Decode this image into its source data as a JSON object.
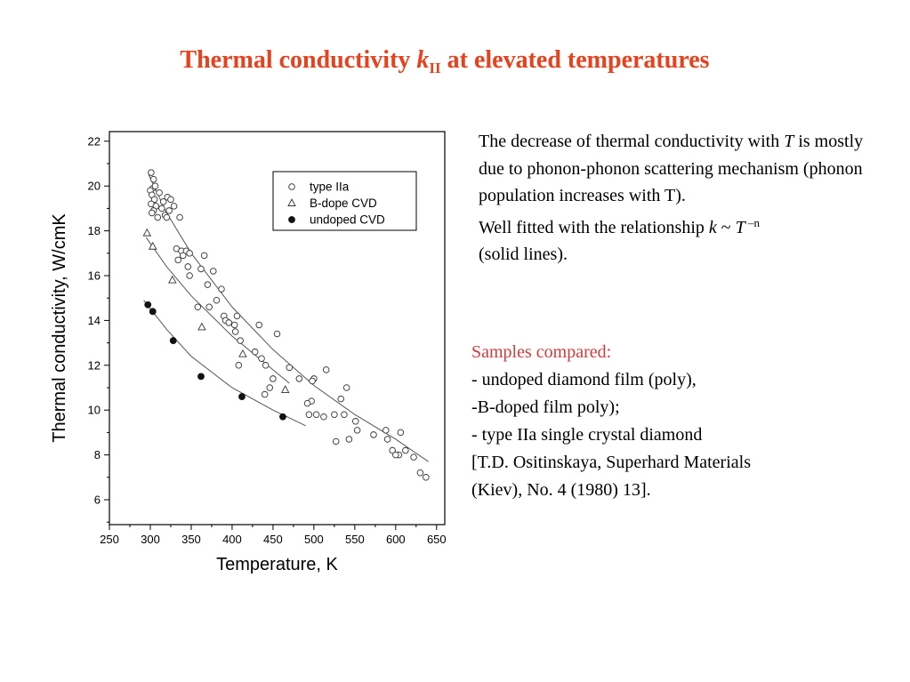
{
  "title": {
    "main": "Thermal conductivity ",
    "symbol": "k",
    "subscript": "II",
    "rest": " at elevated temperatures"
  },
  "description": {
    "line1_pre": "The decrease of thermal conductivity with ",
    "line1_T": "T",
    "line1_post": " is mostly due to phonon-phonon scattering mechanism (phonon population increases with T).",
    "line2_pre": "Well fitted with the relationship ",
    "line2_k": "k",
    "line2_sim": " ~ ",
    "line2_T": "T",
    "line2_exp": " –n",
    "line2_post": " (solid lines)."
  },
  "samples": {
    "heading": "Samples compared:",
    "items": [
      "- undoped diamond film (poly),",
      "-B-doped film poly);",
      "- type IIa single crystal diamond",
      " [T.D. Ositinskaya, Superhard Materials",
      "(Kiev), No. 4 (1980) 13]."
    ]
  },
  "chart_data": {
    "type": "scatter",
    "title": "",
    "xlabel": "Temperature, K",
    "ylabel": "Thermal conductivity, W/cmK",
    "xlim": [
      250,
      660
    ],
    "ylim": [
      4.6,
      22
    ],
    "xticks": [
      250,
      300,
      350,
      400,
      450,
      500,
      550,
      600,
      650
    ],
    "yticks": [
      6,
      8,
      10,
      12,
      14,
      16,
      18,
      20,
      22
    ],
    "grid": false,
    "legend_position": "top-right",
    "series": [
      {
        "name": "type IIa",
        "marker": "open-circle",
        "points": [
          [
            301,
            20.6
          ],
          [
            304,
            20.3
          ],
          [
            303,
            19.9
          ],
          [
            306,
            20.0
          ],
          [
            300,
            19.8
          ],
          [
            302,
            19.6
          ],
          [
            305,
            19.4
          ],
          [
            301,
            19.2
          ],
          [
            307,
            19.1
          ],
          [
            304,
            18.9
          ],
          [
            302,
            18.8
          ],
          [
            309,
            18.6
          ],
          [
            311,
            19.7
          ],
          [
            316,
            19.3
          ],
          [
            314,
            19.0
          ],
          [
            318,
            18.7
          ],
          [
            321,
            19.5
          ],
          [
            325,
            19.4
          ],
          [
            323,
            18.9
          ],
          [
            320,
            18.6
          ],
          [
            329,
            19.1
          ],
          [
            336,
            18.6
          ],
          [
            332,
            17.2
          ],
          [
            338,
            17.1
          ],
          [
            344,
            17.1
          ],
          [
            334,
            16.7
          ],
          [
            348,
            17.0
          ],
          [
            340,
            16.9
          ],
          [
            366,
            16.9
          ],
          [
            346,
            16.4
          ],
          [
            362,
            16.3
          ],
          [
            348,
            16.0
          ],
          [
            377,
            16.2
          ],
          [
            370,
            15.6
          ],
          [
            387,
            15.4
          ],
          [
            358,
            14.6
          ],
          [
            372,
            14.6
          ],
          [
            381,
            14.9
          ],
          [
            390,
            14.2
          ],
          [
            392,
            14.0
          ],
          [
            396,
            13.9
          ],
          [
            403,
            13.8
          ],
          [
            406,
            14.2
          ],
          [
            404,
            13.5
          ],
          [
            410,
            13.1
          ],
          [
            433,
            13.8
          ],
          [
            455,
            13.4
          ],
          [
            428,
            12.6
          ],
          [
            436,
            12.3
          ],
          [
            441,
            12.0
          ],
          [
            450,
            11.4
          ],
          [
            470,
            11.9
          ],
          [
            408,
            12.0
          ],
          [
            446,
            11.0
          ],
          [
            440,
            10.7
          ],
          [
            482,
            11.4
          ],
          [
            500,
            11.4
          ],
          [
            498,
            11.3
          ],
          [
            497,
            10.4
          ],
          [
            515,
            11.8
          ],
          [
            540,
            11.0
          ],
          [
            533,
            10.5
          ],
          [
            492,
            10.3
          ],
          [
            503,
            9.8
          ],
          [
            512,
            9.7
          ],
          [
            525,
            9.8
          ],
          [
            494,
            9.8
          ],
          [
            537,
            9.8
          ],
          [
            551,
            9.5
          ],
          [
            553,
            9.1
          ],
          [
            573,
            8.9
          ],
          [
            588,
            9.1
          ],
          [
            606,
            9.0
          ],
          [
            543,
            8.7
          ],
          [
            527,
            8.6
          ],
          [
            590,
            8.7
          ],
          [
            596,
            8.2
          ],
          [
            604,
            8.0
          ],
          [
            600,
            8.0
          ],
          [
            612,
            8.2
          ],
          [
            622,
            7.9
          ],
          [
            630,
            7.2
          ],
          [
            637,
            7.0
          ]
        ]
      },
      {
        "name": "B-dope CVD",
        "marker": "open-triangle",
        "points": [
          [
            296,
            17.9
          ],
          [
            303,
            17.3
          ],
          [
            327,
            15.8
          ],
          [
            363,
            13.7
          ],
          [
            413,
            12.5
          ],
          [
            465,
            10.9
          ]
        ]
      },
      {
        "name": "undoped CVD",
        "marker": "filled-circle",
        "points": [
          [
            297,
            14.7
          ],
          [
            303,
            14.4
          ],
          [
            328,
            13.1
          ],
          [
            362,
            11.5
          ],
          [
            412,
            10.6
          ],
          [
            462,
            9.7
          ]
        ]
      }
    ],
    "fits": [
      {
        "series": "type IIa",
        "points": [
          [
            298,
            20.5
          ],
          [
            320,
            18.8
          ],
          [
            350,
            17.0
          ],
          [
            400,
            14.6
          ],
          [
            450,
            12.7
          ],
          [
            500,
            11.1
          ],
          [
            550,
            9.8
          ],
          [
            600,
            8.7
          ],
          [
            640,
            7.7
          ]
        ]
      },
      {
        "series": "B-dope CVD",
        "points": [
          [
            295,
            17.7
          ],
          [
            320,
            16.4
          ],
          [
            350,
            15.1
          ],
          [
            400,
            13.3
          ],
          [
            450,
            11.8
          ],
          [
            470,
            11.2
          ]
        ]
      },
      {
        "series": "undoped CVD",
        "points": [
          [
            292,
            14.9
          ],
          [
            320,
            13.6
          ],
          [
            350,
            12.4
          ],
          [
            400,
            11.0
          ],
          [
            450,
            10.0
          ],
          [
            490,
            9.3
          ]
        ]
      }
    ]
  }
}
